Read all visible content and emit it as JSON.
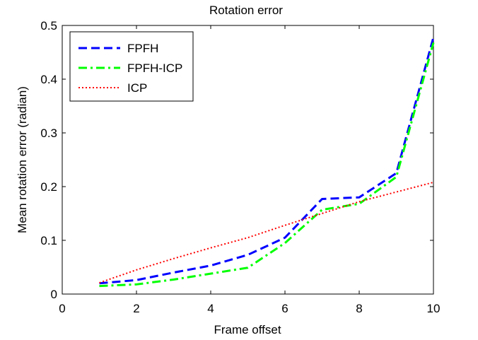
{
  "chart_data": {
    "type": "line",
    "title": "Rotation error",
    "xlabel": "Frame offset",
    "ylabel": "Mean rotation error (radian)",
    "xlim": [
      0,
      10
    ],
    "ylim": [
      0,
      0.5
    ],
    "x_ticks": [
      0,
      2,
      4,
      6,
      8,
      10
    ],
    "y_ticks": [
      0,
      0.1,
      0.2,
      0.3,
      0.4,
      0.5
    ],
    "x_tick_labels": [
      "0",
      "2",
      "4",
      "6",
      "8",
      "10"
    ],
    "y_tick_labels": [
      "0",
      "0.1",
      "0.2",
      "0.3",
      "0.4",
      "0.5"
    ],
    "grid": false,
    "legend_position": "top-left",
    "x": [
      1,
      2,
      3,
      4,
      5,
      6,
      7,
      8,
      9,
      10
    ],
    "series": [
      {
        "name": "FPFH",
        "color": "#0000ff",
        "style": "dashed",
        "values": [
          0.02,
          0.026,
          0.04,
          0.053,
          0.073,
          0.105,
          0.177,
          0.18,
          0.225,
          0.478
        ]
      },
      {
        "name": "FPFH-ICP",
        "color": "#00ff00",
        "style": "dash-dot",
        "values": [
          0.015,
          0.018,
          0.027,
          0.038,
          0.049,
          0.095,
          0.157,
          0.168,
          0.218,
          0.468
        ]
      },
      {
        "name": "ICP",
        "color": "#ff0000",
        "style": "dotted",
        "values": [
          0.021,
          0.045,
          0.066,
          0.086,
          0.105,
          0.128,
          0.15,
          0.172,
          0.19,
          0.208
        ]
      }
    ]
  }
}
